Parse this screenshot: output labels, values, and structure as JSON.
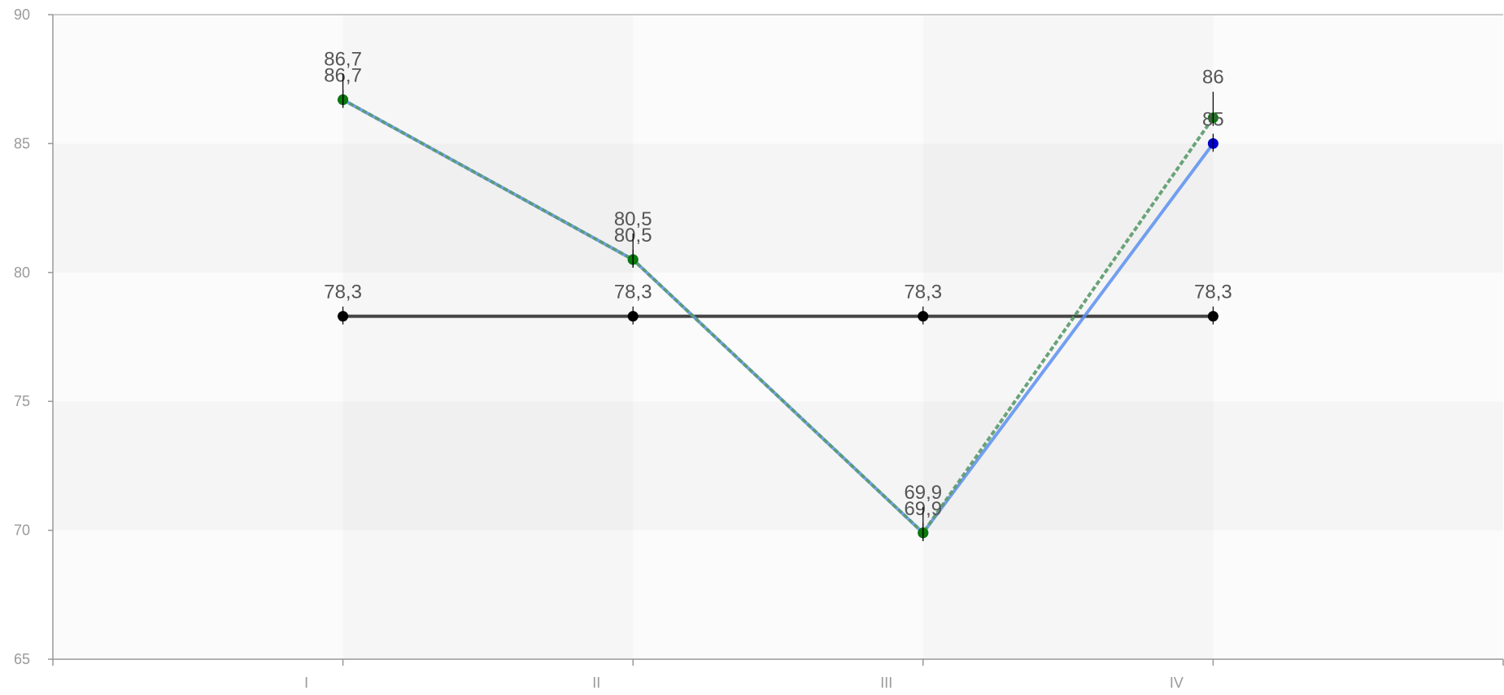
{
  "chart_data": {
    "type": "line",
    "categories": [
      "I",
      "II",
      "III",
      "IV"
    ],
    "ylim": [
      65,
      90
    ],
    "y_ticks": [
      65,
      70,
      75,
      80,
      85,
      90
    ],
    "grid": true,
    "legend": "none",
    "series": [
      {
        "values": [
          78.3,
          78.3,
          78.3,
          78.3
        ],
        "labels": [
          "78,3",
          "78,3",
          "78,3",
          "78,3"
        ],
        "line_color": "#444444",
        "marker_color": "#000000",
        "style": "solid",
        "label_pos": "above"
      },
      {
        "values": [
          86.7,
          80.5,
          69.9,
          85
        ],
        "labels": [
          "86,7",
          "80,5",
          "69,9",
          "85"
        ],
        "line_color": "#5b8ff0",
        "marker_color": "#0000c8",
        "style": "solid",
        "label_pos": "above"
      },
      {
        "values": [
          86.7,
          80.5,
          69.9,
          86
        ],
        "labels": [
          "86,7",
          "80,5",
          "69,9",
          "86"
        ],
        "line_color": "#5a9a6a",
        "marker_color": "#0a7a0a",
        "style": "dashed",
        "label_pos": "above-far"
      }
    ],
    "colors": {
      "axis": "#999999",
      "band_dark": "#f5f5f5",
      "band_light": "#fbfbfb"
    }
  }
}
